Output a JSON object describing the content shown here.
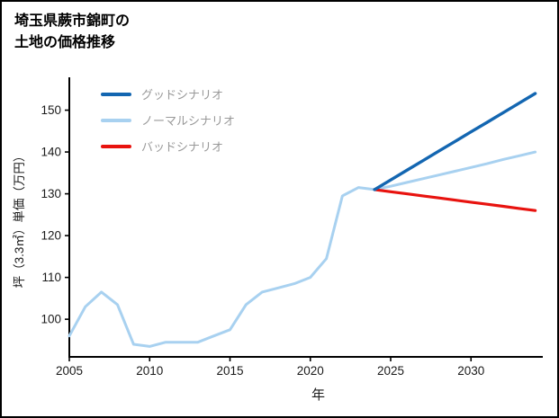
{
  "page": {
    "title_line1": "埼玉県蕨市錦町の",
    "title_line2": "土地の価格推移"
  },
  "chart_data": {
    "type": "line",
    "title": "埼玉県蕨市錦町の土地の価格推移",
    "xlabel": "年",
    "ylabel": "坪（3.3㎡）単価（万円）",
    "xlim": [
      2005,
      2034.3
    ],
    "ylim": [
      91,
      157
    ],
    "xticks": [
      2005,
      2010,
      2015,
      2020,
      2025,
      2030
    ],
    "yticks": [
      100,
      110,
      120,
      130,
      140,
      150
    ],
    "grid": false,
    "legend_position": "upper-left",
    "axis_color": "#000000",
    "tick_label_color": "#1a1a1a",
    "legend_text_color": "#999999",
    "series": [
      {
        "key": "normal-scenario",
        "name": "ノーマルシナリオ",
        "color": "#a8d1f0",
        "width": 3,
        "x": [
          2005,
          2006,
          2007,
          2008,
          2009,
          2010,
          2011,
          2012,
          2013,
          2014,
          2015,
          2016,
          2017,
          2018,
          2019,
          2020,
          2021,
          2022,
          2023,
          2024,
          2025,
          2026,
          2027,
          2028,
          2029,
          2030,
          2031,
          2032,
          2033,
          2034
        ],
        "values": [
          96,
          103,
          106.5,
          103.5,
          94,
          93.5,
          94.5,
          94.5,
          94.5,
          96,
          97.5,
          103.5,
          106.5,
          107.5,
          108.5,
          110,
          114.5,
          129.5,
          131.5,
          131,
          131.8,
          132.7,
          133.6,
          134.5,
          135.4,
          136.3,
          137.2,
          138.2,
          139.1,
          140
        ]
      },
      {
        "key": "bad-scenario",
        "name": "バッドシナリオ",
        "color": "#e8130f",
        "width": 3.2,
        "x": [
          2024,
          2025,
          2026,
          2027,
          2028,
          2029,
          2030,
          2031,
          2032,
          2033,
          2034
        ],
        "values": [
          131,
          130.5,
          130,
          129.5,
          129,
          128.5,
          128,
          127.5,
          127,
          126.5,
          126
        ]
      },
      {
        "key": "good-scenario",
        "name": "グッドシナリオ",
        "color": "#1366b1",
        "width": 3.4,
        "x": [
          2024,
          2025,
          2026,
          2027,
          2028,
          2029,
          2030,
          2031,
          2032,
          2033,
          2034
        ],
        "values": [
          131,
          133.3,
          135.6,
          137.9,
          140.2,
          142.5,
          144.8,
          147.1,
          149.4,
          151.7,
          154
        ]
      }
    ],
    "legend": [
      {
        "label": "グッドシナリオ",
        "series_index": 2
      },
      {
        "label": "ノーマルシナリオ",
        "series_index": 0
      },
      {
        "label": "バッドシナリオ",
        "series_index": 1
      }
    ]
  }
}
